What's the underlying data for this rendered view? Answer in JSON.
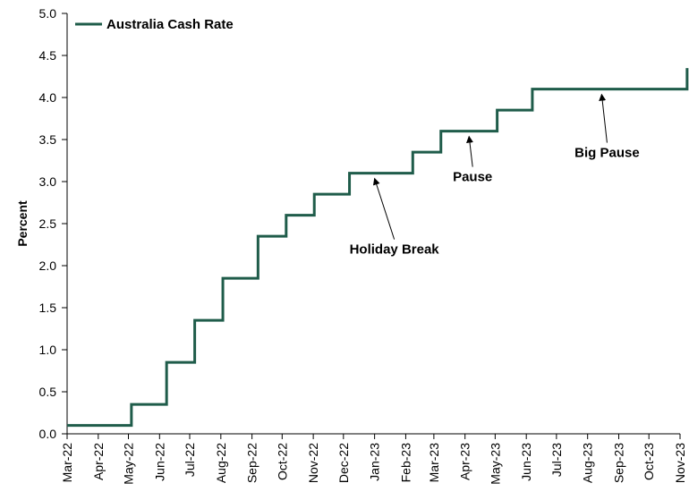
{
  "chart_data": {
    "type": "line",
    "line_style": "step",
    "title": "",
    "xlabel": "",
    "ylabel": "Percent",
    "ylim": [
      0,
      5
    ],
    "y_ticks": [
      "0.0",
      "0.5",
      "1.0",
      "1.5",
      "2.0",
      "2.5",
      "3.0",
      "3.5",
      "4.0",
      "4.5",
      "5.0"
    ],
    "x_ticks": [
      "Mar-22",
      "Apr-22",
      "May-22",
      "Jun-22",
      "Jul-22",
      "Aug-22",
      "Sep-22",
      "Oct-22",
      "Nov-22",
      "Dec-22",
      "Jan-23",
      "Feb-23",
      "Mar-23",
      "Apr-23",
      "May-23",
      "Jun-23",
      "Jul-23",
      "Aug-23",
      "Sep-23",
      "Oct-23",
      "Nov-23"
    ],
    "xlim": [
      "2022-03-01",
      "2023-11-01"
    ],
    "grid": false,
    "legend_position": "top-left",
    "colors": {
      "series": "#1f5c4a",
      "axis": "#000000"
    },
    "series": [
      {
        "name": "Australia Cash Rate",
        "points": [
          {
            "x": "2022-03-01",
            "y": 0.1
          },
          {
            "x": "2022-05-04",
            "y": 0.35
          },
          {
            "x": "2022-06-08",
            "y": 0.85
          },
          {
            "x": "2022-07-06",
            "y": 1.35
          },
          {
            "x": "2022-08-03",
            "y": 1.85
          },
          {
            "x": "2022-09-07",
            "y": 2.35
          },
          {
            "x": "2022-10-05",
            "y": 2.6
          },
          {
            "x": "2022-11-02",
            "y": 2.85
          },
          {
            "x": "2022-12-07",
            "y": 3.1
          },
          {
            "x": "2023-02-08",
            "y": 3.35
          },
          {
            "x": "2023-03-08",
            "y": 3.6
          },
          {
            "x": "2023-05-03",
            "y": 3.85
          },
          {
            "x": "2023-06-07",
            "y": 4.1
          },
          {
            "x": "2023-11-08",
            "y": 4.35
          }
        ],
        "last_date": "2023-11-08"
      }
    ],
    "annotations": [
      {
        "text": "Holiday Break",
        "point": {
          "x": "2023-01-01",
          "y": 3.1
        }
      },
      {
        "text": "Pause",
        "point": {
          "x": "2023-04-05",
          "y": 3.6
        }
      },
      {
        "text": "Big Pause",
        "point": {
          "x": "2023-08-15",
          "y": 4.1
        }
      }
    ]
  }
}
